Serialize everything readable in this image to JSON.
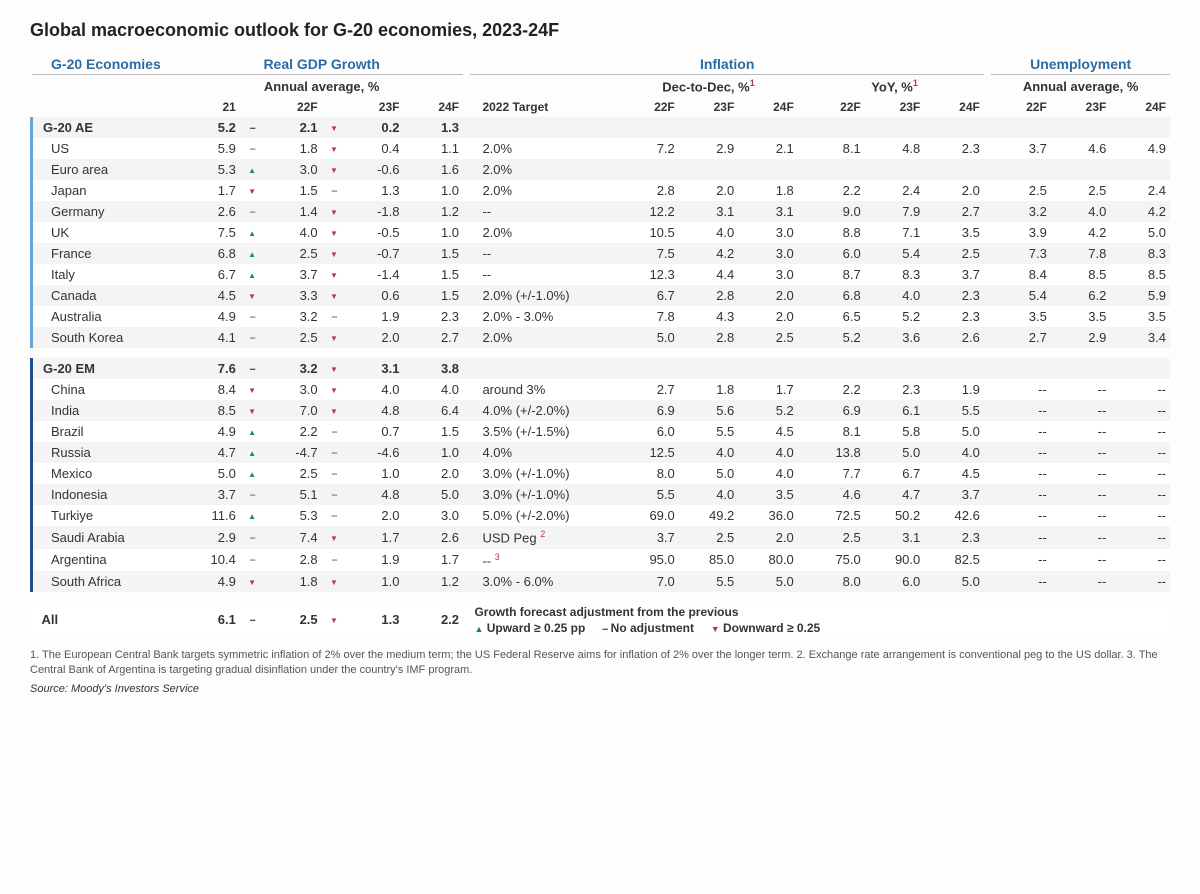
{
  "title": "Global macroeconomic outlook for G-20 economies, 2023-24F",
  "headers": {
    "economies": "G-20 Economies",
    "gdp": "Real GDP Growth",
    "inflation": "Inflation",
    "unemployment": "Unemployment",
    "gdp_sub": "Annual average, %",
    "inf_sub_dec": "Dec-to-Dec, %",
    "inf_sub_yoy": "YoY, %",
    "unemp_sub": "Annual average, %",
    "sup1": "1",
    "cols": [
      "21",
      "22F",
      "23F",
      "24F",
      "2022 Target",
      "22F",
      "23F",
      "24F",
      "22F",
      "23F",
      "24F",
      "22F",
      "23F",
      "24F"
    ]
  },
  "sections": [
    {
      "label": "G-20 AE",
      "bar": "light",
      "header": {
        "gdp21": "5.2",
        "dir22": "--",
        "gdp22": "2.1",
        "dir23": "down",
        "gdp23": "0.2",
        "gdp24": "1.3",
        "target": "",
        "d22": "",
        "d23": "",
        "d24": "",
        "y22": "",
        "y23": "",
        "y24": "",
        "u22": "",
        "u23": "",
        "u24": ""
      },
      "rows": [
        {
          "name": "US",
          "gdp21": "5.9",
          "dir22": "--",
          "gdp22": "1.8",
          "dir23": "down",
          "gdp23": "0.4",
          "gdp24": "1.1",
          "target": "2.0%",
          "d22": "7.2",
          "d23": "2.9",
          "d24": "2.1",
          "y22": "8.1",
          "y23": "4.8",
          "y24": "2.3",
          "u22": "3.7",
          "u23": "4.6",
          "u24": "4.9"
        },
        {
          "name": "Euro area",
          "gdp21": "5.3",
          "dir22": "up",
          "gdp22": "3.0",
          "dir23": "down",
          "gdp23": "-0.6",
          "gdp24": "1.6",
          "target": "2.0%",
          "d22": "",
          "d23": "",
          "d24": "",
          "y22": "",
          "y23": "",
          "y24": "",
          "u22": "",
          "u23": "",
          "u24": ""
        },
        {
          "name": "Japan",
          "gdp21": "1.7",
          "dir22": "down",
          "gdp22": "1.5",
          "dir23": "--",
          "gdp23": "1.3",
          "gdp24": "1.0",
          "target": "2.0%",
          "d22": "2.8",
          "d23": "2.0",
          "d24": "1.8",
          "y22": "2.2",
          "y23": "2.4",
          "y24": "2.0",
          "u22": "2.5",
          "u23": "2.5",
          "u24": "2.4"
        },
        {
          "name": "Germany",
          "gdp21": "2.6",
          "dir22": "--",
          "gdp22": "1.4",
          "dir23": "down",
          "gdp23": "-1.8",
          "gdp24": "1.2",
          "target": "--",
          "d22": "12.2",
          "d23": "3.1",
          "d24": "3.1",
          "y22": "9.0",
          "y23": "7.9",
          "y24": "2.7",
          "u22": "3.2",
          "u23": "4.0",
          "u24": "4.2"
        },
        {
          "name": "UK",
          "gdp21": "7.5",
          "dir22": "up",
          "gdp22": "4.0",
          "dir23": "down",
          "gdp23": "-0.5",
          "gdp24": "1.0",
          "target": "2.0%",
          "d22": "10.5",
          "d23": "4.0",
          "d24": "3.0",
          "y22": "8.8",
          "y23": "7.1",
          "y24": "3.5",
          "u22": "3.9",
          "u23": "4.2",
          "u24": "5.0"
        },
        {
          "name": "France",
          "gdp21": "6.8",
          "dir22": "up",
          "gdp22": "2.5",
          "dir23": "down",
          "gdp23": "-0.7",
          "gdp24": "1.5",
          "target": "--",
          "d22": "7.5",
          "d23": "4.2",
          "d24": "3.0",
          "y22": "6.0",
          "y23": "5.4",
          "y24": "2.5",
          "u22": "7.3",
          "u23": "7.8",
          "u24": "8.3"
        },
        {
          "name": "Italy",
          "gdp21": "6.7",
          "dir22": "up",
          "gdp22": "3.7",
          "dir23": "down",
          "gdp23": "-1.4",
          "gdp24": "1.5",
          "target": "--",
          "d22": "12.3",
          "d23": "4.4",
          "d24": "3.0",
          "y22": "8.7",
          "y23": "8.3",
          "y24": "3.7",
          "u22": "8.4",
          "u23": "8.5",
          "u24": "8.5"
        },
        {
          "name": "Canada",
          "gdp21": "4.5",
          "dir22": "down",
          "gdp22": "3.3",
          "dir23": "down",
          "gdp23": "0.6",
          "gdp24": "1.5",
          "target": "2.0% (+/-1.0%)",
          "d22": "6.7",
          "d23": "2.8",
          "d24": "2.0",
          "y22": "6.8",
          "y23": "4.0",
          "y24": "2.3",
          "u22": "5.4",
          "u23": "6.2",
          "u24": "5.9"
        },
        {
          "name": "Australia",
          "gdp21": "4.9",
          "dir22": "--",
          "gdp22": "3.2",
          "dir23": "--",
          "gdp23": "1.9",
          "gdp24": "2.3",
          "target": "2.0% - 3.0%",
          "d22": "7.8",
          "d23": "4.3",
          "d24": "2.0",
          "y22": "6.5",
          "y23": "5.2",
          "y24": "2.3",
          "u22": "3.5",
          "u23": "3.5",
          "u24": "3.5"
        },
        {
          "name": "South Korea",
          "gdp21": "4.1",
          "dir22": "--",
          "gdp22": "2.5",
          "dir23": "down",
          "gdp23": "2.0",
          "gdp24": "2.7",
          "target": "2.0%",
          "d22": "5.0",
          "d23": "2.8",
          "d24": "2.5",
          "y22": "5.2",
          "y23": "3.6",
          "y24": "2.6",
          "u22": "2.7",
          "u23": "2.9",
          "u24": "3.4"
        }
      ]
    },
    {
      "label": "G-20 EM",
      "bar": "dark",
      "header": {
        "gdp21": "7.6",
        "dir22": "--",
        "gdp22": "3.2",
        "dir23": "down",
        "gdp23": "3.1",
        "gdp24": "3.8",
        "target": "",
        "d22": "",
        "d23": "",
        "d24": "",
        "y22": "",
        "y23": "",
        "y24": "",
        "u22": "",
        "u23": "",
        "u24": ""
      },
      "rows": [
        {
          "name": "China",
          "gdp21": "8.4",
          "dir22": "down",
          "gdp22": "3.0",
          "dir23": "down",
          "gdp23": "4.0",
          "gdp24": "4.0",
          "target": "around 3%",
          "d22": "2.7",
          "d23": "1.8",
          "d24": "1.7",
          "y22": "2.2",
          "y23": "2.3",
          "y24": "1.9",
          "u22": "--",
          "u23": "--",
          "u24": "--"
        },
        {
          "name": "India",
          "gdp21": "8.5",
          "dir22": "down",
          "gdp22": "7.0",
          "dir23": "down",
          "gdp23": "4.8",
          "gdp24": "6.4",
          "target": "4.0% (+/-2.0%)",
          "d22": "6.9",
          "d23": "5.6",
          "d24": "5.2",
          "y22": "6.9",
          "y23": "6.1",
          "y24": "5.5",
          "u22": "--",
          "u23": "--",
          "u24": "--"
        },
        {
          "name": "Brazil",
          "gdp21": "4.9",
          "dir22": "up",
          "gdp22": "2.2",
          "dir23": "--",
          "gdp23": "0.7",
          "gdp24": "1.5",
          "target": "3.5% (+/-1.5%)",
          "d22": "6.0",
          "d23": "5.5",
          "d24": "4.5",
          "y22": "8.1",
          "y23": "5.8",
          "y24": "5.0",
          "u22": "--",
          "u23": "--",
          "u24": "--"
        },
        {
          "name": "Russia",
          "gdp21": "4.7",
          "dir22": "up",
          "gdp22": "-4.7",
          "dir23": "--",
          "gdp23": "-4.6",
          "gdp24": "1.0",
          "target": "4.0%",
          "d22": "12.5",
          "d23": "4.0",
          "d24": "4.0",
          "y22": "13.8",
          "y23": "5.0",
          "y24": "4.0",
          "u22": "--",
          "u23": "--",
          "u24": "--"
        },
        {
          "name": "Mexico",
          "gdp21": "5.0",
          "dir22": "up",
          "gdp22": "2.5",
          "dir23": "--",
          "gdp23": "1.0",
          "gdp24": "2.0",
          "target": "3.0% (+/-1.0%)",
          "d22": "8.0",
          "d23": "5.0",
          "d24": "4.0",
          "y22": "7.7",
          "y23": "6.7",
          "y24": "4.5",
          "u22": "--",
          "u23": "--",
          "u24": "--"
        },
        {
          "name": "Indonesia",
          "gdp21": "3.7",
          "dir22": "--",
          "gdp22": "5.1",
          "dir23": "--",
          "gdp23": "4.8",
          "gdp24": "5.0",
          "target": "3.0% (+/-1.0%)",
          "d22": "5.5",
          "d23": "4.0",
          "d24": "3.5",
          "y22": "4.6",
          "y23": "4.7",
          "y24": "3.7",
          "u22": "--",
          "u23": "--",
          "u24": "--"
        },
        {
          "name": "Turkiye",
          "gdp21": "11.6",
          "dir22": "up",
          "gdp22": "5.3",
          "dir23": "--",
          "gdp23": "2.0",
          "gdp24": "3.0",
          "target": "5.0% (+/-2.0%)",
          "d22": "69.0",
          "d23": "49.2",
          "d24": "36.0",
          "y22": "72.5",
          "y23": "50.2",
          "y24": "42.6",
          "u22": "--",
          "u23": "--",
          "u24": "--"
        },
        {
          "name": "Saudi Arabia",
          "gdp21": "2.9",
          "dir22": "--",
          "gdp22": "7.4",
          "dir23": "down",
          "gdp23": "1.7",
          "gdp24": "2.6",
          "target": "USD Peg",
          "target_sup": "2",
          "d22": "3.7",
          "d23": "2.5",
          "d24": "2.0",
          "y22": "2.5",
          "y23": "3.1",
          "y24": "2.3",
          "u22": "--",
          "u23": "--",
          "u24": "--"
        },
        {
          "name": "Argentina",
          "gdp21": "10.4",
          "dir22": "--",
          "gdp22": "2.8",
          "dir23": "--",
          "gdp23": "1.9",
          "gdp24": "1.7",
          "target": "--",
          "target_sup": "3",
          "d22": "95.0",
          "d23": "85.0",
          "d24": "80.0",
          "y22": "75.0",
          "y23": "90.0",
          "y24": "82.5",
          "u22": "--",
          "u23": "--",
          "u24": "--"
        },
        {
          "name": "South Africa",
          "gdp21": "4.9",
          "dir22": "down",
          "gdp22": "1.8",
          "dir23": "down",
          "gdp23": "1.0",
          "gdp24": "1.2",
          "target": "3.0% - 6.0%",
          "d22": "7.0",
          "d23": "5.5",
          "d24": "5.0",
          "y22": "8.0",
          "y23": "6.0",
          "y24": "5.0",
          "u22": "--",
          "u23": "--",
          "u24": "--"
        }
      ]
    }
  ],
  "all_row": {
    "label": "All",
    "gdp21": "6.1",
    "dir22": "--",
    "gdp22": "2.5",
    "dir23": "down",
    "gdp23": "1.3",
    "gdp24": "2.2"
  },
  "legend": {
    "title": "Growth forecast adjustment from the previous",
    "up": "Upward ≥ 0.25 pp",
    "neutral": "No adjustment",
    "down": "Downward ≥ 0.25"
  },
  "footnotes": "1. The European Central Bank targets symmetric inflation of 2% over the medium term; the US Federal Reserve aims for inflation of 2% over the longer term. 2. Exchange rate arrangement is conventional peg to the US dollar. 3. The Central Bank of Argentina is targeting gradual disinflation under the country's IMF program.",
  "source": "Source: Moody's Investors Service",
  "style": {
    "arrows": {
      "up": "▲",
      "down": "▼",
      "--": "--"
    },
    "colors": {
      "up": "#178a5f",
      "down": "#b6365a",
      "neutral": "#555",
      "header": "#2d6ca2",
      "bar_light": "#6aa5d8",
      "bar_dark": "#1f4e8c",
      "stripe": "#f4f4f4"
    }
  }
}
